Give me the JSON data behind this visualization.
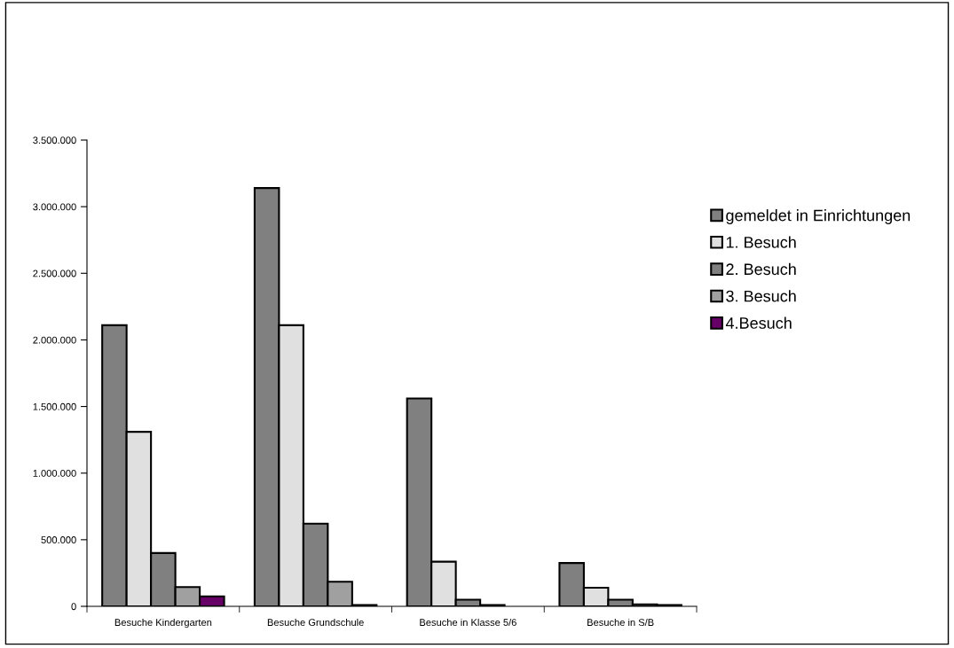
{
  "chart_data": {
    "type": "bar",
    "categories": [
      "Besuche Kindergarten",
      "Besuche Grundschule",
      "Besuche in Klasse 5/6",
      "Besuche in S/B"
    ],
    "series": [
      {
        "name": "gemeldet in Einrichtungen",
        "color": "#808080",
        "values": [
          2110000,
          3140000,
          1560000,
          325000
        ]
      },
      {
        "name": "1. Besuch",
        "color": "#e0e0e0",
        "values": [
          1310000,
          2110000,
          335000,
          140000
        ]
      },
      {
        "name": "2. Besuch",
        "color": "#808080",
        "values": [
          400000,
          620000,
          50000,
          50000
        ]
      },
      {
        "name": "3. Besuch",
        "color": "#a0a0a0",
        "values": [
          145000,
          185000,
          10000,
          15000
        ]
      },
      {
        "name": "4.Besuch",
        "color": "#660066",
        "values": [
          75000,
          10000,
          null,
          10000
        ]
      }
    ],
    "ylim": [
      0,
      3500000
    ],
    "yticks": [
      {
        "value": 0,
        "label": "0"
      },
      {
        "value": 500000,
        "label": "500.000"
      },
      {
        "value": 1000000,
        "label": "1.000.000"
      },
      {
        "value": 1500000,
        "label": "1.500.000"
      },
      {
        "value": 2000000,
        "label": "2.000.000"
      },
      {
        "value": 2500000,
        "label": "2.500.000"
      },
      {
        "value": 3000000,
        "label": "3.000.000"
      },
      {
        "value": 3500000,
        "label": "3.500.000"
      }
    ],
    "grid": false,
    "legend": "right"
  }
}
